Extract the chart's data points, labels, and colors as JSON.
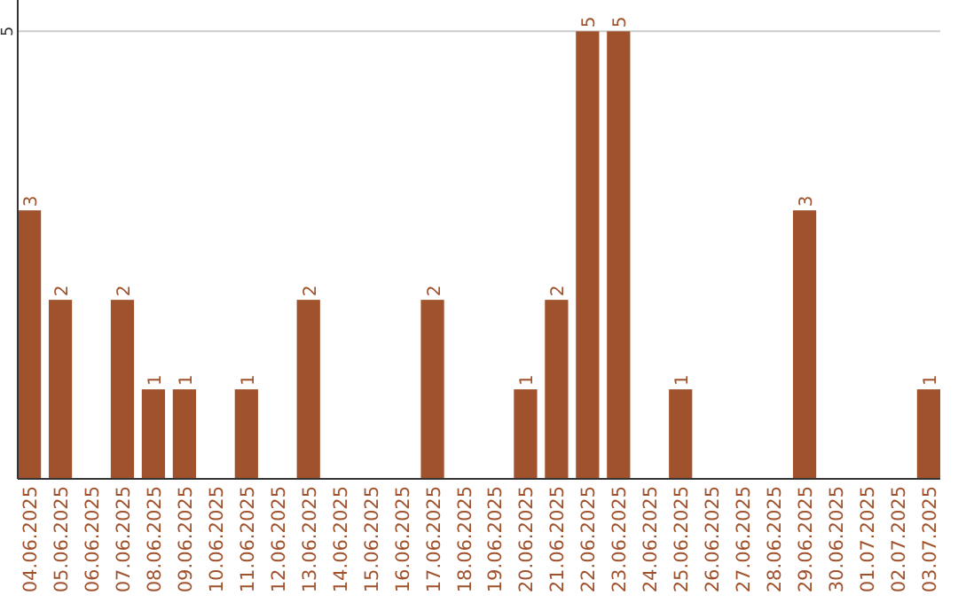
{
  "chart_data": {
    "type": "bar",
    "categories": [
      "04.06.2025",
      "05.06.2025",
      "06.06.2025",
      "07.06.2025",
      "08.06.2025",
      "09.06.2025",
      "10.06.2025",
      "11.06.2025",
      "12.06.2025",
      "13.06.2025",
      "14.06.2025",
      "15.06.2025",
      "16.06.2025",
      "17.06.2025",
      "18.06.2025",
      "19.06.2025",
      "20.06.2025",
      "21.06.2025",
      "22.06.2025",
      "23.06.2025",
      "24.06.2025",
      "25.06.2025",
      "26.06.2025",
      "27.06.2025",
      "28.06.2025",
      "29.06.2025",
      "30.06.2025",
      "01.07.2025",
      "02.07.2025",
      "03.07.2025"
    ],
    "values": [
      3,
      2,
      0,
      2,
      1,
      1,
      0,
      1,
      0,
      2,
      0,
      0,
      0,
      2,
      0,
      0,
      1,
      2,
      5,
      5,
      0,
      1,
      0,
      0,
      0,
      3,
      0,
      0,
      0,
      1
    ],
    "value_labels": [
      "3",
      "2",
      null,
      "2",
      "1",
      "1",
      null,
      "1",
      null,
      "2",
      null,
      null,
      null,
      "2",
      null,
      null,
      "1",
      "2",
      "5",
      "5",
      null,
      "1",
      null,
      null,
      null,
      "3",
      null,
      null,
      null,
      "1"
    ],
    "color": "#a0522d",
    "ylim": [
      0,
      5.35
    ],
    "yticks": [
      5
    ],
    "grid": "y"
  }
}
